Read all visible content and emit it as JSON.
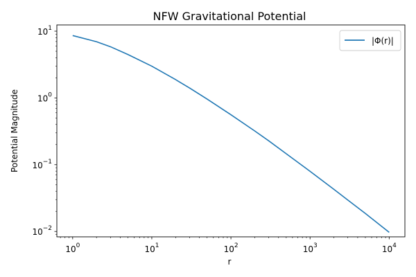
{
  "chart_data": {
    "type": "line",
    "title": "NFW Gravitational Potential",
    "xlabel": "r",
    "ylabel": "Potential Magnitude",
    "xscale": "log",
    "yscale": "log",
    "xlim": [
      0.631,
      15800
    ],
    "ylim": [
      0.0083,
      12.4
    ],
    "grid": false,
    "legend": {
      "position": "top-right"
    },
    "x_ticks": [
      {
        "value": 1,
        "base": "10",
        "exp": "0"
      },
      {
        "value": 10,
        "base": "10",
        "exp": "1"
      },
      {
        "value": 100,
        "base": "10",
        "exp": "2"
      },
      {
        "value": 1000,
        "base": "10",
        "exp": "3"
      },
      {
        "value": 10000,
        "base": "10",
        "exp": "4"
      }
    ],
    "y_ticks": [
      {
        "value": 0.01,
        "base": "10",
        "exp": "−2"
      },
      {
        "value": 0.1,
        "base": "10",
        "exp": "−1"
      },
      {
        "value": 1,
        "base": "10",
        "exp": "0"
      },
      {
        "value": 10,
        "base": "10",
        "exp": "1"
      }
    ],
    "series": [
      {
        "name": "|Φ(r)|",
        "color": "#1f77b4",
        "x": [
          1,
          2,
          3,
          5,
          10,
          20,
          30,
          50,
          100,
          200,
          300,
          500,
          1000,
          2000,
          3000,
          5000,
          10000
        ],
        "y": [
          8.6,
          6.95,
          5.85,
          4.47,
          2.99,
          1.88,
          1.41,
          0.96,
          0.56,
          0.32,
          0.228,
          0.146,
          0.0795,
          0.0428,
          0.0295,
          0.0186,
          0.0097
        ]
      }
    ]
  }
}
